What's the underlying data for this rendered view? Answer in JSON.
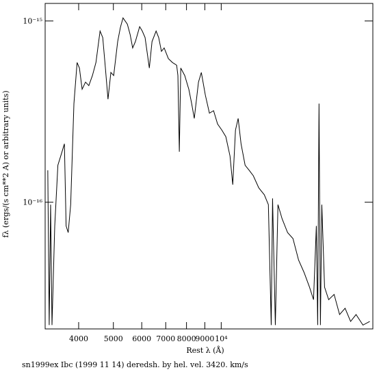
{
  "chart_data": {
    "type": "line",
    "x_label": "Rest λ (Å)",
    "y_label": "fλ (ergs/(s cm**2 A) or arbitrary units)",
    "caption": "sn1999ex Ibc (1999 11 14) deredsh. by hel. vel.  3420. km/s",
    "x_log": true,
    "y_log": true,
    "xlim": [
      3225,
      26500
    ],
    "ylim": [
      2e-17,
      1.25e-15
    ],
    "xticks": [
      4000,
      5000,
      6000,
      7000,
      8000,
      9000,
      {
        "value": 10000,
        "label": "10⁴"
      }
    ],
    "yticks": [
      {
        "value": 1e-16,
        "label": "10⁻¹⁶"
      },
      {
        "value": 1e-15,
        "label": "10⁻¹⁵"
      }
    ],
    "series": [
      {
        "color": "#000000",
        "x": [
          3280,
          3310,
          3340,
          3370,
          3430,
          3500,
          3580,
          3650,
          3690,
          3740,
          3800,
          3880,
          3960,
          4020,
          4090,
          4180,
          4270,
          4370,
          4470,
          4590,
          4670,
          4750,
          4830,
          4920,
          5010,
          5140,
          5230,
          5320,
          5470,
          5570,
          5660,
          5760,
          5920,
          6020,
          6130,
          6300,
          6410,
          6580,
          6690,
          6810,
          6930,
          7120,
          7310,
          7510,
          7570,
          7640,
          7710,
          7910,
          8120,
          8270,
          8410,
          8640,
          8800,
          9030,
          9270,
          9520,
          9770,
          10040,
          10300,
          10580,
          10770,
          10960,
          11150,
          11360,
          11660,
          11970,
          12290,
          12730,
          13190,
          13540,
          13790,
          13910,
          14160,
          14400,
          14790,
          15320,
          15860,
          16440,
          17030,
          17640,
          18100,
          18430,
          18590,
          18750,
          18920,
          19090,
          19430,
          19950,
          20660,
          21400,
          22170,
          22970,
          23790,
          24870,
          25980
        ],
        "values": [
          1.5e-16,
          2.1e-17,
          9.7e-17,
          2.1e-17,
          7.4e-17,
          1.6e-16,
          1.85e-16,
          2.1e-16,
          7.4e-17,
          6.8e-17,
          9.7e-17,
          3.5e-16,
          5.9e-16,
          5.5e-16,
          4.2e-16,
          4.6e-16,
          4.4e-16,
          5e-16,
          5.9e-16,
          8.8e-16,
          8.1e-16,
          5.5e-16,
          3.7e-16,
          5.2e-16,
          5e-16,
          7.7e-16,
          9.2e-16,
          1.04e-15,
          9.6e-16,
          8.4e-16,
          7.1e-16,
          7.7e-16,
          9.3e-16,
          8.8e-16,
          8.1e-16,
          5.5e-16,
          7.7e-16,
          8.8e-16,
          8.1e-16,
          6.8e-16,
          7.1e-16,
          6.2e-16,
          5.9e-16,
          5.7e-16,
          5e-16,
          1.9e-16,
          5.5e-16,
          5e-16,
          4.2e-16,
          3.5e-16,
          2.9e-16,
          4.6e-16,
          5.2e-16,
          3.9e-16,
          3.1e-16,
          3.2e-16,
          2.7e-16,
          2.5e-16,
          2.3e-16,
          1.8e-16,
          1.25e-16,
          2.5e-16,
          2.9e-16,
          2.1e-16,
          1.6e-16,
          1.5e-16,
          1.4e-16,
          1.2e-16,
          1.1e-16,
          9.7e-17,
          2.1e-17,
          1.05e-16,
          2.1e-17,
          9.7e-17,
          8.1e-17,
          6.8e-17,
          6.3e-17,
          4.8e-17,
          4.1e-17,
          3.4e-17,
          2.9e-17,
          7.4e-17,
          2.1e-17,
          3.5e-16,
          2.1e-17,
          9.7e-17,
          3.4e-17,
          2.9e-17,
          3.1e-17,
          2.4e-17,
          2.6e-17,
          2.2e-17,
          2.4e-17,
          2.1e-17,
          2.2e-17
        ]
      }
    ]
  }
}
